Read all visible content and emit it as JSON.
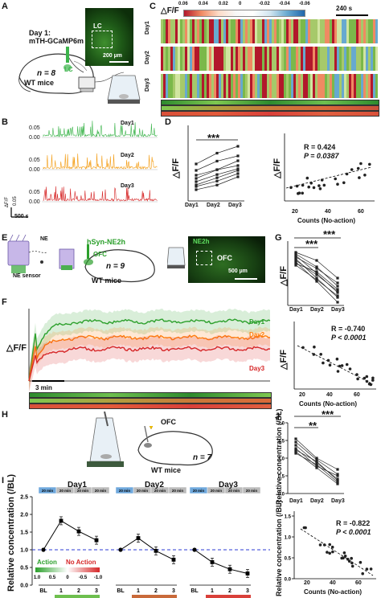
{
  "panels": {
    "A": {
      "letter": "A",
      "day_title": "Day 1:",
      "virus": "mTH-GCaMP6m",
      "region": "LC",
      "n": "n = 8",
      "group": "WT mice",
      "image_region": "LC",
      "scale": "200 µm"
    },
    "B": {
      "letter": "B",
      "days": [
        "Day1",
        "Day2",
        "Day3"
      ],
      "tick_top": "0.05",
      "tick_bottom": "0.00",
      "scalebar_y": "0.05",
      "scalebar_y_unit": "ΔF/F",
      "scalebar_x": "500 s",
      "colors": [
        "#3cb44b",
        "#f39c12",
        "#d62728"
      ]
    },
    "C": {
      "letter": "C",
      "title": "△F/F",
      "colorbar_ticks": [
        "0.06",
        "0.04",
        "0.02",
        "0",
        "-0.02",
        "-0.04",
        "-0.06"
      ],
      "time_scale": "240 s",
      "days": [
        "Day1",
        "Day2",
        "Day3"
      ]
    },
    "D": {
      "letter": "D",
      "sig": "***",
      "ylabel": "△F/F",
      "xticks": [
        "Day1",
        "Day2",
        "Day3"
      ],
      "r_text": "R = 0.424",
      "p_text": "P = 0.0387",
      "scatter_xlabel": "Counts (No-action)",
      "scatter_xticks": [
        "20",
        "40",
        "60"
      ]
    },
    "E": {
      "letter": "E",
      "sensor": "NE sensor",
      "ne": "NE",
      "virus": "hSyn-NE2h",
      "region": "OFC",
      "n": "n = 9",
      "group": "WT mice",
      "image_title": "NE2h",
      "image_region": "OFC",
      "scale": "500 µm"
    },
    "F": {
      "letter": "F",
      "ylabel": "△F/F",
      "days": [
        "Day1",
        "Day2",
        "Day3"
      ],
      "time_scale": "3 min",
      "colors": [
        "#2ca02c",
        "#ff7f0e",
        "#d62728"
      ]
    },
    "G": {
      "letter": "G",
      "sig1": "***",
      "sig2": "***",
      "ylabel": "△F/F",
      "xticks": [
        "Day1",
        "Day2",
        "Day3"
      ],
      "r_text": "R = -0.740",
      "p_text": "P < 0.0001",
      "scatter_xlabel": "Counts (No-action)",
      "scatter_xticks": [
        "20",
        "40",
        "60"
      ]
    },
    "H": {
      "letter": "H",
      "region": "OFC",
      "n": "n = 7",
      "group": "WT mice"
    },
    "I": {
      "letter": "I",
      "ylabel": "Relative concentration (/BL)",
      "yticks": [
        "0.0",
        "0.5",
        "1.0",
        "1.5",
        "2.0",
        "2.5"
      ],
      "days": [
        "Day1",
        "Day2",
        "Day3"
      ],
      "xticks": [
        "BL",
        "1",
        "2",
        "3"
      ],
      "schedule": [
        "20 min",
        "20 min",
        "20 min",
        "20 min"
      ],
      "legend_action": "Action",
      "legend_noaction": "No Action",
      "legend_ticks": [
        "1.0",
        "0.5",
        "0",
        "-0.5",
        "-1.0"
      ],
      "chart_data": {
        "type": "line",
        "x": [
          "BL",
          "1",
          "2",
          "3"
        ],
        "series": [
          {
            "name": "Day1",
            "values": [
              1.0,
              1.82,
              1.52,
              1.27
            ]
          },
          {
            "name": "Day2",
            "values": [
              1.0,
              1.33,
              0.97,
              0.72
            ]
          },
          {
            "name": "Day3",
            "values": [
              1.0,
              0.65,
              0.45,
              0.33
            ]
          }
        ],
        "ylim": [
          0,
          2.5
        ],
        "reference_line": 1.0
      }
    },
    "J": {
      "letter": "J",
      "sig1": "***",
      "sig2": "**",
      "ylabel": "Relative concentration (/BL)",
      "xticks": [
        "Day1",
        "Day2",
        "Day3"
      ],
      "yticks_top": [
        "0.0",
        "0.5",
        "1.0",
        "1.5",
        "2.0"
      ],
      "r_text": "R = -0.822",
      "p_text": "P < 0.0001",
      "scatter_xlabel": "Counts (No-action)",
      "scatter_xticks": [
        "20",
        "40",
        "60"
      ],
      "scatter_yticks": [
        "0.0",
        "0.5",
        "1.0",
        "1.5"
      ]
    }
  }
}
